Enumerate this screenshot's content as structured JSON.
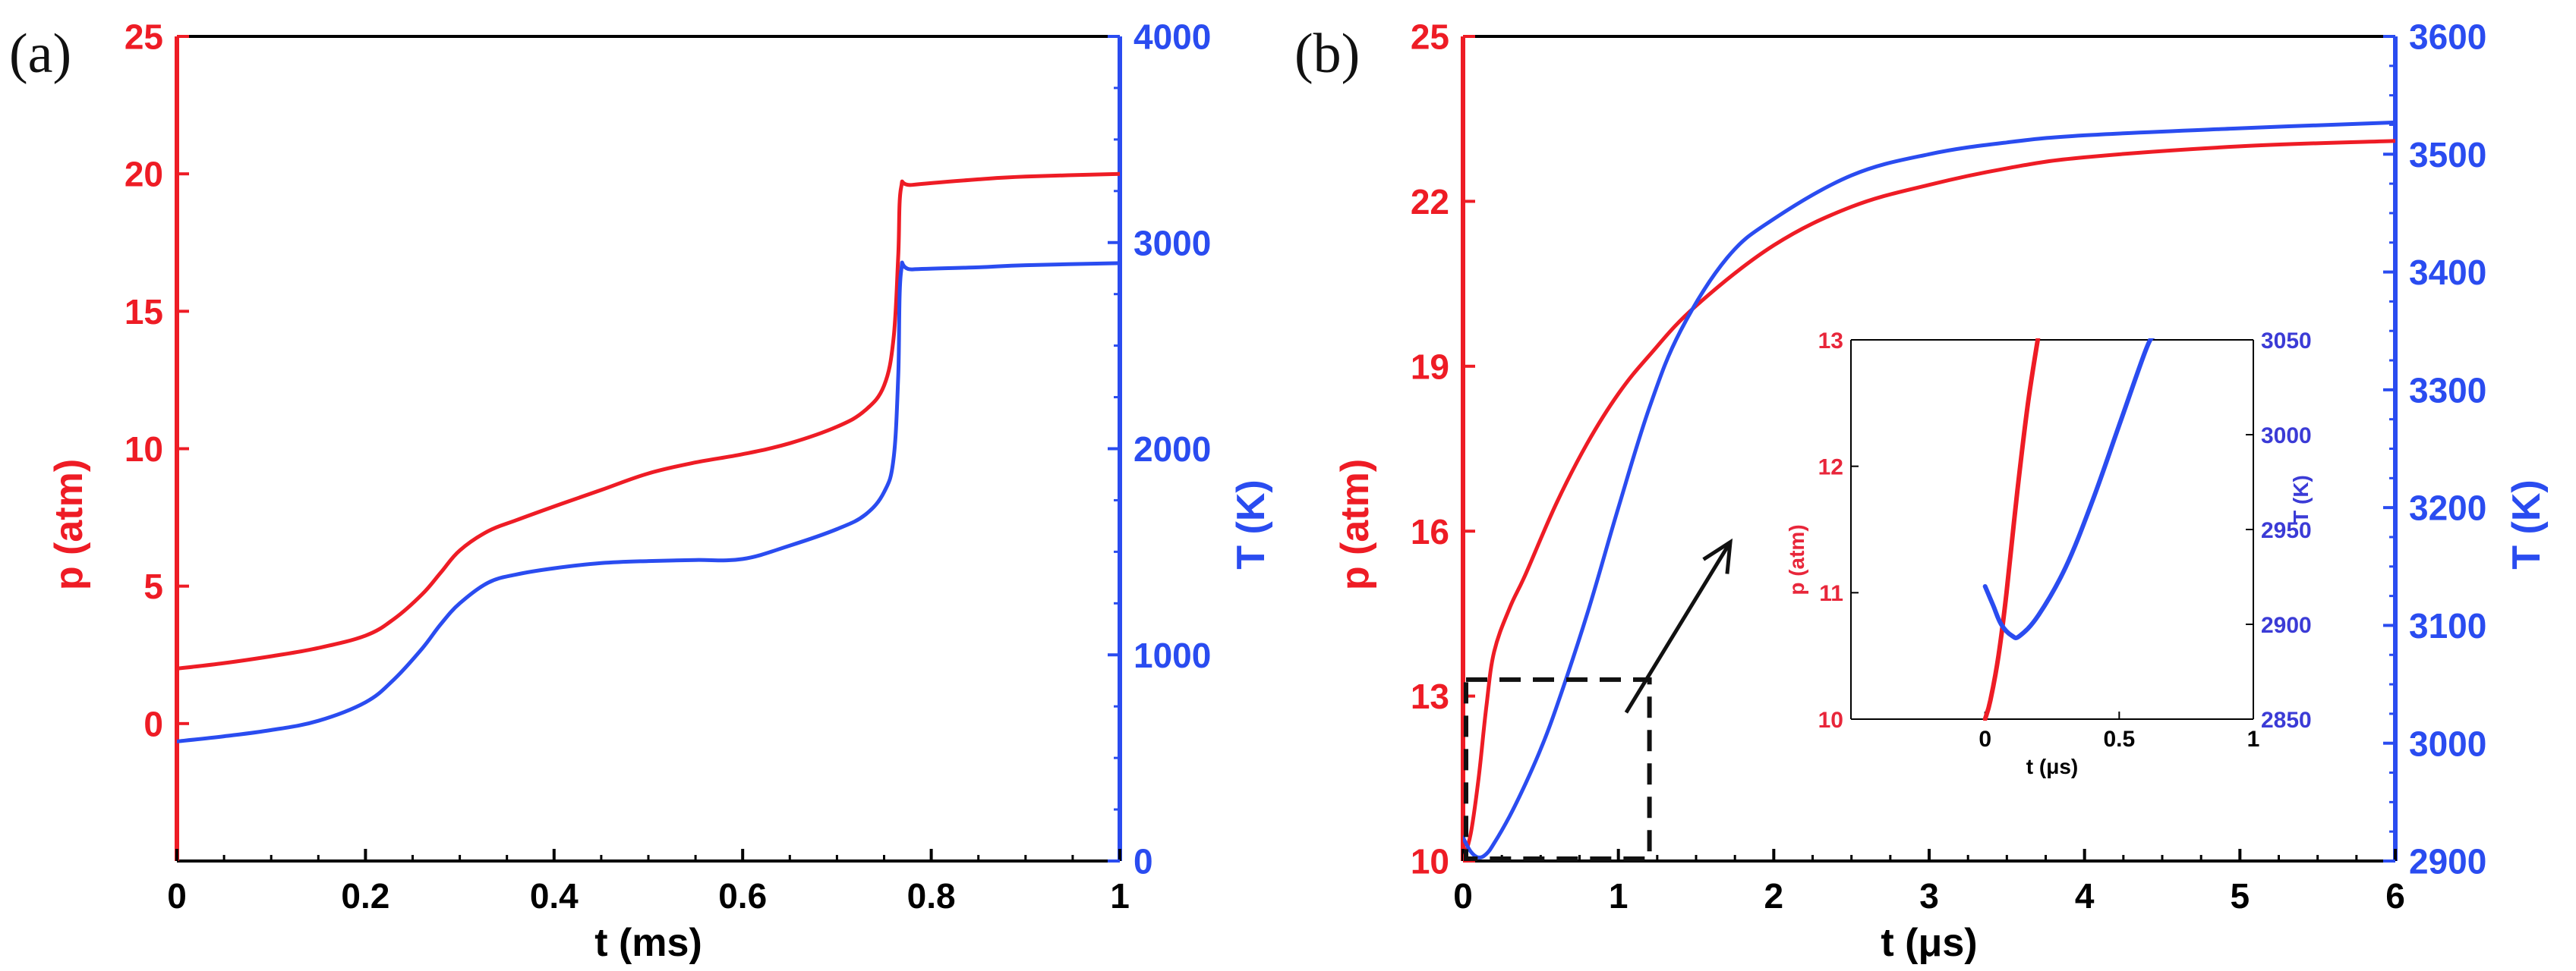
{
  "colors": {
    "red": "#ee1c25",
    "blue": "#2a4cf0",
    "axis": "#000000",
    "inset_red_text": "#e8263a",
    "inset_blue_text": "#3b3bd6"
  },
  "chart_data": [
    {
      "panel_label": "(a)",
      "type": "line",
      "xlabel": "t (ms)",
      "y_left_label": "p (atm)",
      "y_right_label": "T (K)",
      "xlim": [
        0,
        1
      ],
      "y_left_lim": [
        -5,
        25
      ],
      "y_right_lim": [
        0,
        4000
      ],
      "x_ticks": [
        {
          "v": 0,
          "t": "0"
        },
        {
          "v": 0.2,
          "t": "0.2"
        },
        {
          "v": 0.4,
          "t": "0.4"
        },
        {
          "v": 0.6,
          "t": "0.6"
        },
        {
          "v": 0.8,
          "t": "0.8"
        },
        {
          "v": 1,
          "t": "1"
        }
      ],
      "y_left_ticks": [
        {
          "v": 0,
          "t": "0"
        },
        {
          "v": 5,
          "t": "5"
        },
        {
          "v": 10,
          "t": "10"
        },
        {
          "v": 15,
          "t": "15"
        },
        {
          "v": 20,
          "t": "20"
        },
        {
          "v": 25,
          "t": "25"
        }
      ],
      "y_right_ticks": [
        {
          "v": 0,
          "t": "0"
        },
        {
          "v": 1000,
          "t": "1000"
        },
        {
          "v": 2000,
          "t": "2000"
        },
        {
          "v": 3000,
          "t": "3000"
        },
        {
          "v": 4000,
          "t": "4000"
        }
      ],
      "series": [
        {
          "name": "p",
          "axis": "left",
          "color": "red",
          "x": [
            0,
            0.05,
            0.1,
            0.15,
            0.2,
            0.23,
            0.26,
            0.28,
            0.3,
            0.33,
            0.36,
            0.4,
            0.45,
            0.5,
            0.55,
            0.6,
            0.65,
            0.7,
            0.73,
            0.75,
            0.76,
            0.765,
            0.768,
            0.78,
            0.85,
            0.9,
            1.0
          ],
          "y": [
            2.0,
            2.2,
            2.45,
            2.75,
            3.2,
            3.8,
            4.7,
            5.5,
            6.3,
            7.0,
            7.4,
            7.9,
            8.5,
            9.1,
            9.5,
            9.8,
            10.2,
            10.8,
            11.4,
            12.3,
            14.0,
            17.0,
            19.5,
            19.6,
            19.8,
            19.9,
            20.0
          ]
        },
        {
          "name": "T",
          "axis": "right",
          "color": "blue",
          "x": [
            0,
            0.05,
            0.1,
            0.15,
            0.2,
            0.23,
            0.26,
            0.28,
            0.3,
            0.33,
            0.36,
            0.4,
            0.45,
            0.5,
            0.55,
            0.6,
            0.65,
            0.7,
            0.73,
            0.75,
            0.76,
            0.765,
            0.768,
            0.78,
            0.85,
            0.9,
            1.0
          ],
          "y": [
            580,
            605,
            635,
            680,
            770,
            880,
            1030,
            1150,
            1250,
            1350,
            1390,
            1420,
            1445,
            1455,
            1460,
            1465,
            1530,
            1610,
            1680,
            1790,
            1950,
            2350,
            2860,
            2870,
            2880,
            2890,
            2900
          ]
        }
      ]
    },
    {
      "panel_label": "(b)",
      "type": "line",
      "xlabel": "t (μs)",
      "y_left_label": "p (atm)",
      "y_right_label": "T (K)",
      "xlim": [
        0,
        6
      ],
      "y_left_lim": [
        10,
        25
      ],
      "y_right_lim": [
        2900,
        3600
      ],
      "x_ticks": [
        {
          "v": 0,
          "t": "0"
        },
        {
          "v": 1,
          "t": "1"
        },
        {
          "v": 2,
          "t": "2"
        },
        {
          "v": 3,
          "t": "3"
        },
        {
          "v": 4,
          "t": "4"
        },
        {
          "v": 5,
          "t": "5"
        },
        {
          "v": 6,
          "t": "6"
        }
      ],
      "y_left_ticks": [
        {
          "v": 10,
          "t": "10"
        },
        {
          "v": 13,
          "t": "13"
        },
        {
          "v": 16,
          "t": "16"
        },
        {
          "v": 19,
          "t": "19"
        },
        {
          "v": 22,
          "t": "22"
        },
        {
          "v": 25,
          "t": "25"
        }
      ],
      "y_right_ticks": [
        {
          "v": 2900,
          "t": "2900"
        },
        {
          "v": 3000,
          "t": "3000"
        },
        {
          "v": 3100,
          "t": "3100"
        },
        {
          "v": 3200,
          "t": "3200"
        },
        {
          "v": 3300,
          "t": "3300"
        },
        {
          "v": 3400,
          "t": "3400"
        },
        {
          "v": 3500,
          "t": "3500"
        },
        {
          "v": 3600,
          "t": "3600"
        }
      ],
      "series": [
        {
          "name": "p",
          "axis": "left",
          "color": "red",
          "x": [
            0,
            0.05,
            0.1,
            0.15,
            0.2,
            0.3,
            0.4,
            0.6,
            0.8,
            1.0,
            1.2,
            1.5,
            2.0,
            2.5,
            3.0,
            3.5,
            4.0,
            5.0,
            6.0
          ],
          "y": [
            10.0,
            10.5,
            11.5,
            12.8,
            13.8,
            14.6,
            15.2,
            16.5,
            17.6,
            18.5,
            19.2,
            20.1,
            21.2,
            21.9,
            22.3,
            22.6,
            22.8,
            23.0,
            23.1
          ]
        },
        {
          "name": "T",
          "axis": "right",
          "color": "blue",
          "x": [
            0,
            0.05,
            0.1,
            0.15,
            0.2,
            0.3,
            0.4,
            0.5,
            0.6,
            0.8,
            1.0,
            1.2,
            1.4,
            1.7,
            2.0,
            2.5,
            3.0,
            3.5,
            4.0,
            5.0,
            6.0
          ],
          "y": [
            2920,
            2908,
            2903,
            2906,
            2915,
            2938,
            2965,
            2995,
            3030,
            3110,
            3200,
            3285,
            3350,
            3412,
            3445,
            3482,
            3500,
            3510,
            3516,
            3522,
            3527
          ]
        }
      ],
      "inset": {
        "xlim": [
          -0.5,
          1
        ],
        "y_left_lim": [
          10,
          13
        ],
        "y_right_lim": [
          2850,
          3050
        ],
        "xlabel": "t (μs)",
        "y_left_label": "p (atm)",
        "y_right_label": "T (K)",
        "x_ticks": [
          {
            "v": 0,
            "t": "0"
          },
          {
            "v": 0.5,
            "t": "0.5"
          },
          {
            "v": 1,
            "t": "1"
          }
        ],
        "y_left_ticks": [
          {
            "v": 10,
            "t": "10"
          },
          {
            "v": 11,
            "t": "11"
          },
          {
            "v": 12,
            "t": "12"
          },
          {
            "v": 13,
            "t": "13"
          }
        ],
        "y_right_ticks": [
          {
            "v": 2850,
            "t": "2850"
          },
          {
            "v": 2900,
            "t": "2900"
          },
          {
            "v": 2950,
            "t": "2950"
          },
          {
            "v": 3000,
            "t": "3000"
          },
          {
            "v": 3050,
            "t": "3050"
          }
        ],
        "series": [
          {
            "name": "p",
            "axis": "left",
            "color": "red",
            "x": [
              0,
              0.02,
              0.05,
              0.08,
              0.12,
              0.16,
              0.2
            ],
            "y": [
              10.0,
              10.15,
              10.5,
              11.0,
              11.8,
              12.5,
              13.05
            ]
          },
          {
            "name": "T",
            "axis": "right",
            "color": "blue",
            "x": [
              0,
              0.03,
              0.06,
              0.1,
              0.13,
              0.2,
              0.3,
              0.4,
              0.5,
              0.6,
              0.63
            ],
            "y": [
              2920,
              2910,
              2900,
              2894,
              2894,
              2905,
              2930,
              2965,
              3005,
              3045,
              3052
            ]
          }
        ]
      },
      "zoom_box": {
        "x": [
          0,
          1.2
        ],
        "p": [
          10,
          13.3
        ]
      }
    }
  ]
}
